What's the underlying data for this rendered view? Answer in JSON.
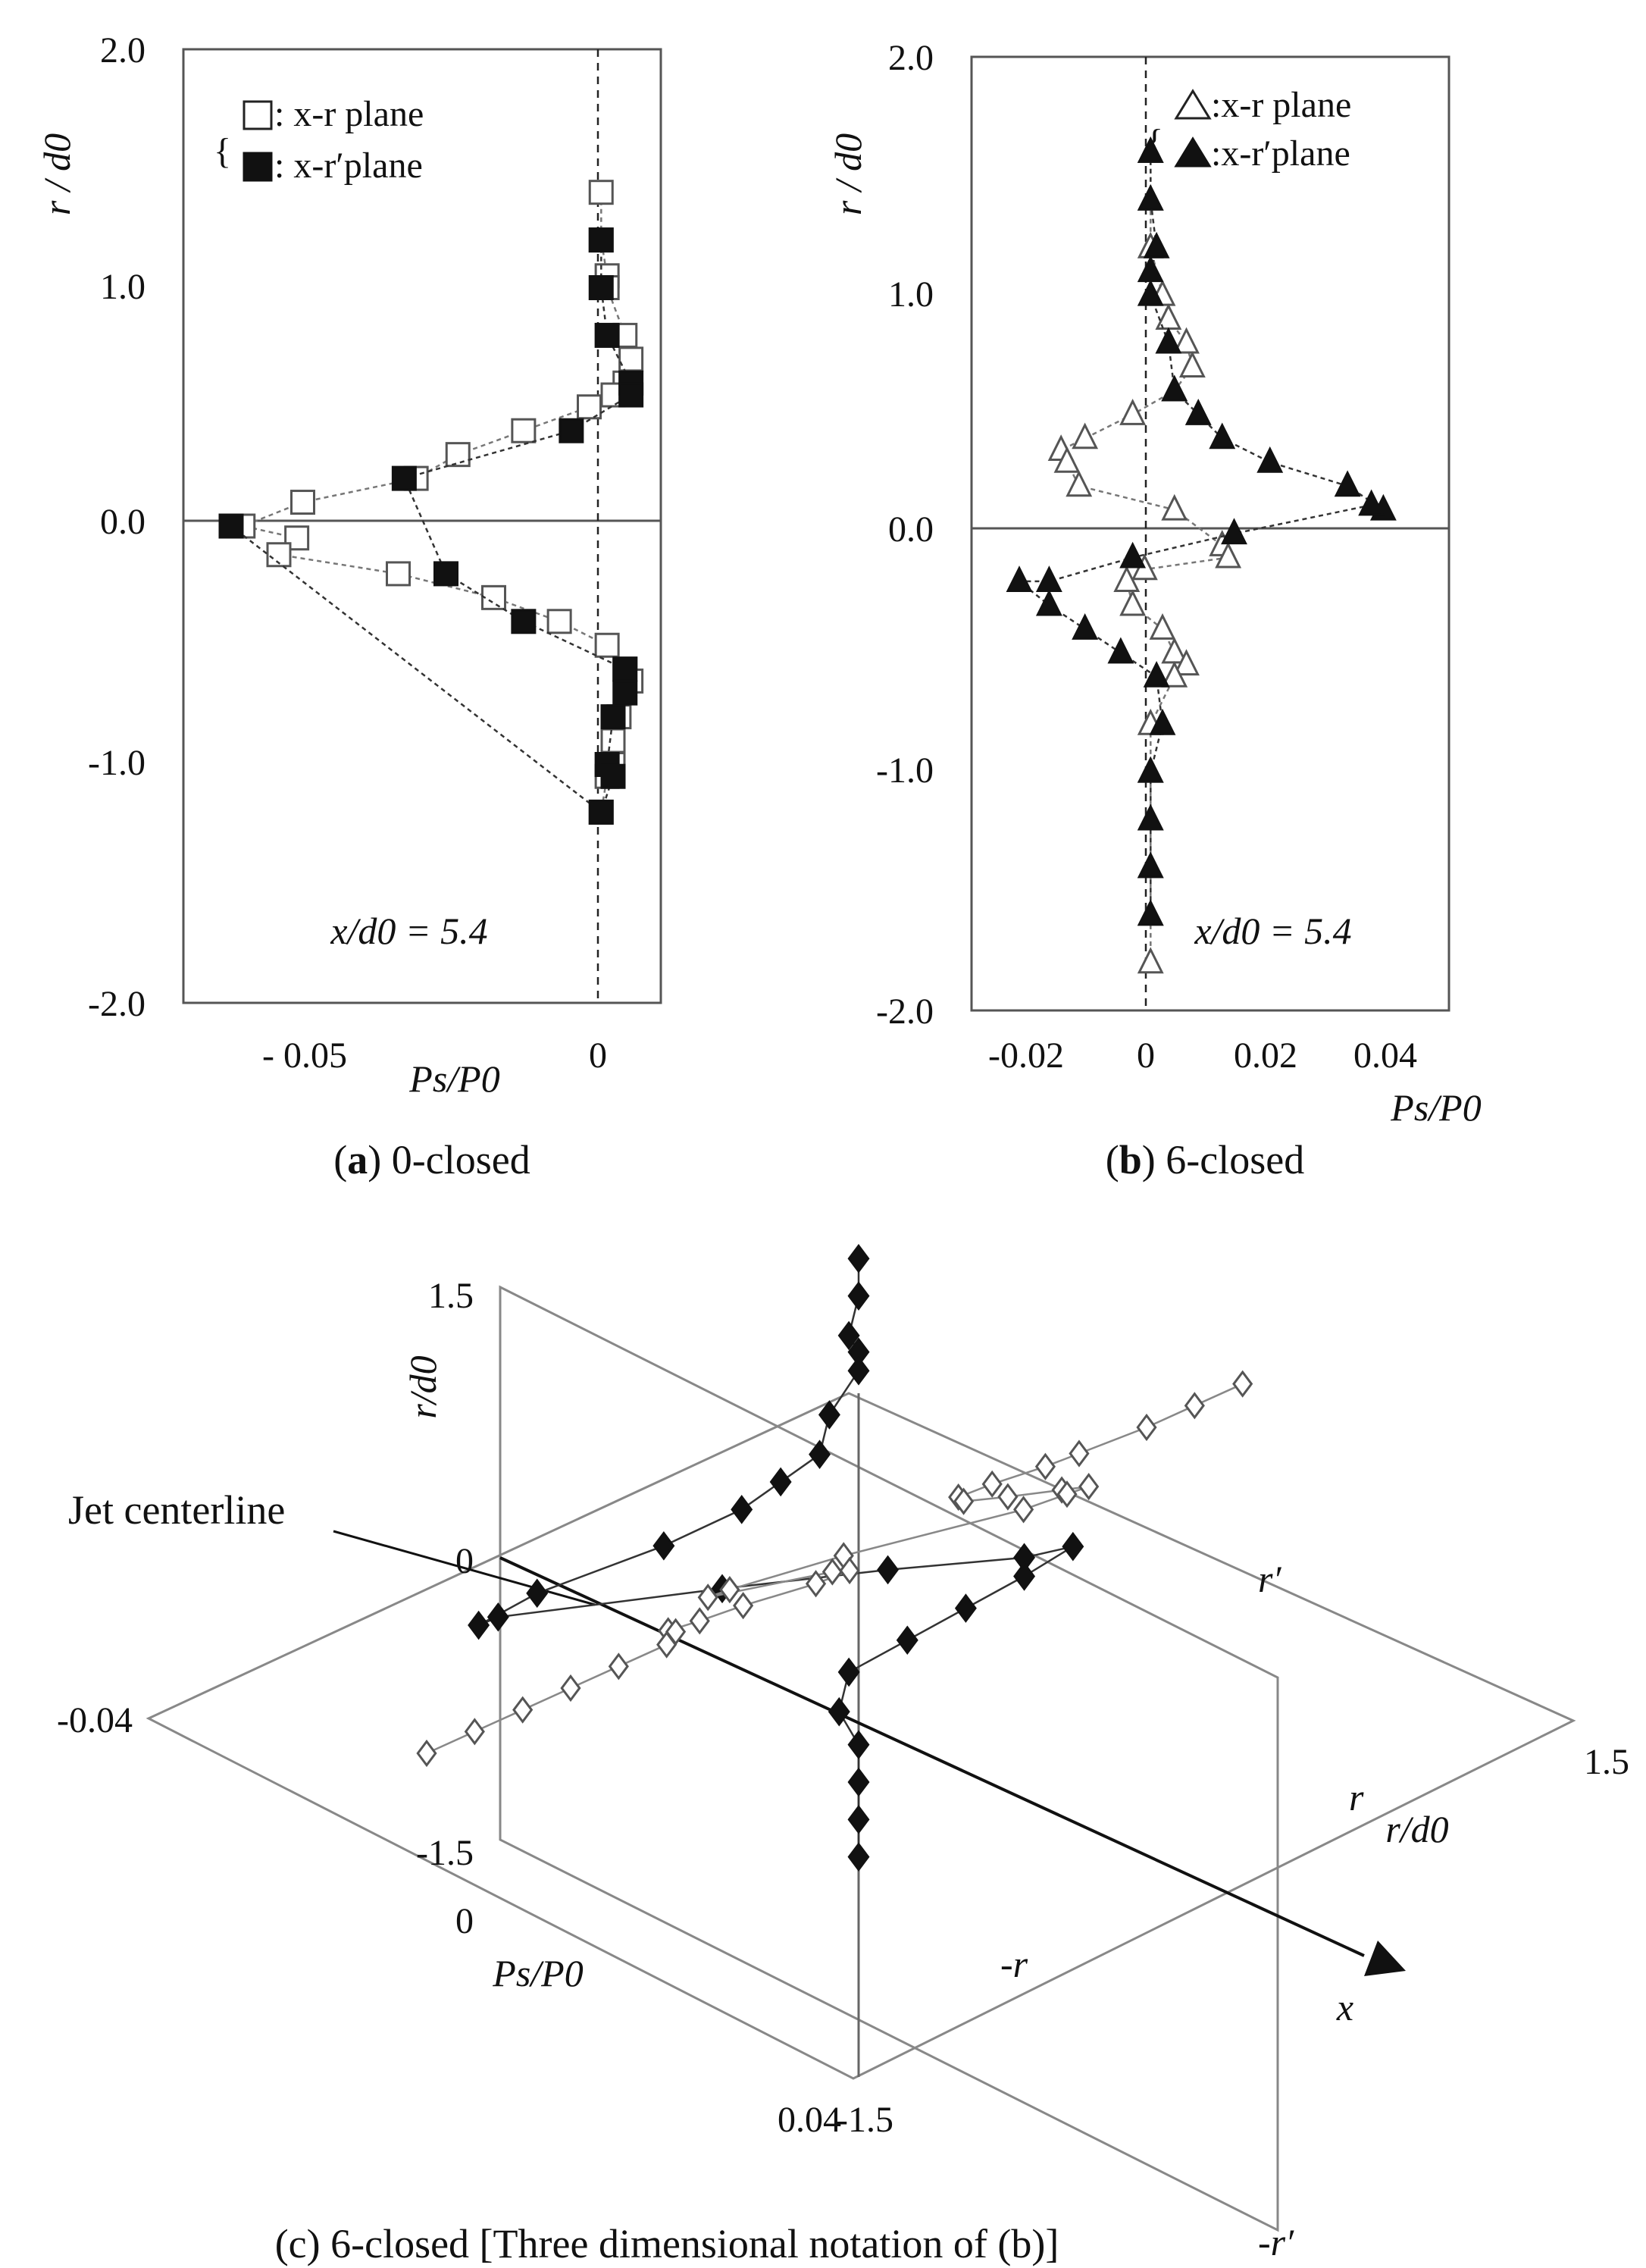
{
  "chart_data": [
    {
      "id": "a",
      "type": "scatter",
      "caption_label": "a",
      "caption_text": "0-closed",
      "ylabel": "r / d0",
      "xlabel": "Ps/P0",
      "annotation": "x/d0 = 5.4",
      "xlim": [
        -0.07,
        0.01
      ],
      "ylim": [
        -2.0,
        2.0
      ],
      "xticks": [
        "- 0.05",
        "0"
      ],
      "yticks": [
        "2.0",
        "1.0",
        "0.0",
        "-1.0",
        "-2.0"
      ],
      "series": [
        {
          "name": ": x-r  plane",
          "marker": "square-open",
          "points": [
            [
              0.0,
              1.4
            ],
            [
              0.0,
              1.2
            ],
            [
              0.001,
              1.05
            ],
            [
              0.001,
              1.0
            ],
            [
              0.004,
              0.8
            ],
            [
              0.005,
              0.7
            ],
            [
              0.004,
              0.6
            ],
            [
              0.002,
              0.55
            ],
            [
              -0.002,
              0.5
            ],
            [
              -0.013,
              0.4
            ],
            [
              -0.024,
              0.3
            ],
            [
              -0.031,
              0.2
            ],
            [
              -0.05,
              0.1
            ],
            [
              -0.06,
              0.0
            ],
            [
              -0.051,
              -0.05
            ],
            [
              -0.054,
              -0.12
            ],
            [
              -0.034,
              -0.2
            ],
            [
              -0.018,
              -0.3
            ],
            [
              -0.007,
              -0.4
            ],
            [
              0.001,
              -0.5
            ],
            [
              0.004,
              -0.6
            ],
            [
              0.005,
              -0.65
            ],
            [
              0.003,
              -0.8
            ],
            [
              0.002,
              -0.9
            ],
            [
              0.002,
              -1.0
            ],
            [
              0.001,
              -1.05
            ],
            [
              0.0,
              -1.2
            ]
          ]
        },
        {
          "name": ": x-r′plane",
          "marker": "square-filled",
          "points": [
            [
              0.0,
              1.2
            ],
            [
              0.0,
              1.0
            ],
            [
              0.001,
              0.8
            ],
            [
              0.005,
              0.6
            ],
            [
              0.005,
              0.55
            ],
            [
              -0.005,
              0.4
            ],
            [
              -0.033,
              0.2
            ],
            [
              -0.026,
              -0.2
            ],
            [
              -0.013,
              -0.4
            ],
            [
              0.004,
              -0.6
            ],
            [
              0.004,
              -0.7
            ],
            [
              0.002,
              -0.8
            ],
            [
              0.001,
              -1.0
            ],
            [
              0.002,
              -1.05
            ],
            [
              0.0,
              -1.2
            ],
            [
              -0.062,
              0.0
            ]
          ]
        }
      ]
    },
    {
      "id": "b",
      "type": "scatter",
      "caption_label": "b",
      "caption_text": "6-closed",
      "ylabel": "r / d0",
      "xlabel": "Ps/P0",
      "annotation": "x/d0 = 5.4",
      "xlim": [
        -0.03,
        0.05
      ],
      "ylim": [
        -2.0,
        2.0
      ],
      "xticks": [
        "-0.02",
        "0",
        "0.02",
        "0.04"
      ],
      "yticks": [
        "2.0",
        "1.0",
        "0.0",
        "-1.0",
        "-2.0"
      ],
      "series": [
        {
          "name": ":x-r plane",
          "marker": "triangle-open",
          "points": [
            [
              0.0,
              1.6
            ],
            [
              0.0,
              1.4
            ],
            [
              0.0,
              1.2
            ],
            [
              0.002,
              1.0
            ],
            [
              0.003,
              0.9
            ],
            [
              0.006,
              0.8
            ],
            [
              0.007,
              0.7
            ],
            [
              0.004,
              0.6
            ],
            [
              -0.003,
              0.5
            ],
            [
              -0.011,
              0.4
            ],
            [
              -0.015,
              0.35
            ],
            [
              -0.014,
              0.3
            ],
            [
              -0.012,
              0.2
            ],
            [
              0.004,
              0.1
            ],
            [
              0.012,
              -0.05
            ],
            [
              0.013,
              -0.1
            ],
            [
              -0.001,
              -0.15
            ],
            [
              -0.004,
              -0.2
            ],
            [
              -0.003,
              -0.3
            ],
            [
              0.002,
              -0.4
            ],
            [
              0.004,
              -0.5
            ],
            [
              0.006,
              -0.55
            ],
            [
              0.004,
              -0.6
            ],
            [
              0.0,
              -0.8
            ],
            [
              0.0,
              -1.0
            ],
            [
              0.0,
              -1.2
            ],
            [
              0.0,
              -1.4
            ],
            [
              0.0,
              -1.6
            ],
            [
              0.0,
              -1.8
            ]
          ]
        },
        {
          "name": ":x-r′plane",
          "marker": "triangle-filled",
          "points": [
            [
              0.0,
              1.6
            ],
            [
              0.0,
              1.4
            ],
            [
              0.001,
              1.2
            ],
            [
              0.0,
              1.1
            ],
            [
              0.0,
              1.0
            ],
            [
              0.003,
              0.8
            ],
            [
              0.004,
              0.6
            ],
            [
              0.008,
              0.5
            ],
            [
              0.012,
              0.4
            ],
            [
              0.02,
              0.3
            ],
            [
              0.033,
              0.2
            ],
            [
              0.039,
              0.1
            ],
            [
              0.037,
              0.12
            ],
            [
              0.014,
              0.0
            ],
            [
              -0.003,
              -0.1
            ],
            [
              -0.017,
              -0.2
            ],
            [
              -0.022,
              -0.2
            ],
            [
              -0.017,
              -0.3
            ],
            [
              -0.011,
              -0.4
            ],
            [
              -0.005,
              -0.5
            ],
            [
              0.001,
              -0.6
            ],
            [
              0.002,
              -0.8
            ],
            [
              0.0,
              -1.0
            ],
            [
              0.0,
              -1.2
            ],
            [
              0.0,
              -1.4
            ],
            [
              0.0,
              -1.6
            ]
          ]
        }
      ]
    },
    {
      "id": "c",
      "type": "scatter",
      "caption_text": "(c) 6-closed [Three dimensional notation of (b)]",
      "ylabel": "r/d0",
      "xlabel": "Ps/P0",
      "depth_label": "r/d0",
      "x_axis_name": "x",
      "annotation": "Jet centerline",
      "tick_labels": {
        "top": "1.5",
        "origin": "0",
        "left": "-0.04",
        "right": "1.5",
        "lower": "-1.5",
        "front_zero": "0",
        "front": "0.04",
        "bottom": "-1.5"
      },
      "plane_labels": [
        "r′",
        "r",
        "-r",
        "-r′"
      ],
      "series": [
        {
          "name": "x-r plane",
          "marker": "diamond-open"
        },
        {
          "name": "x-r′plane",
          "marker": "diamond-filled"
        }
      ]
    }
  ],
  "legend_bracket": "{"
}
